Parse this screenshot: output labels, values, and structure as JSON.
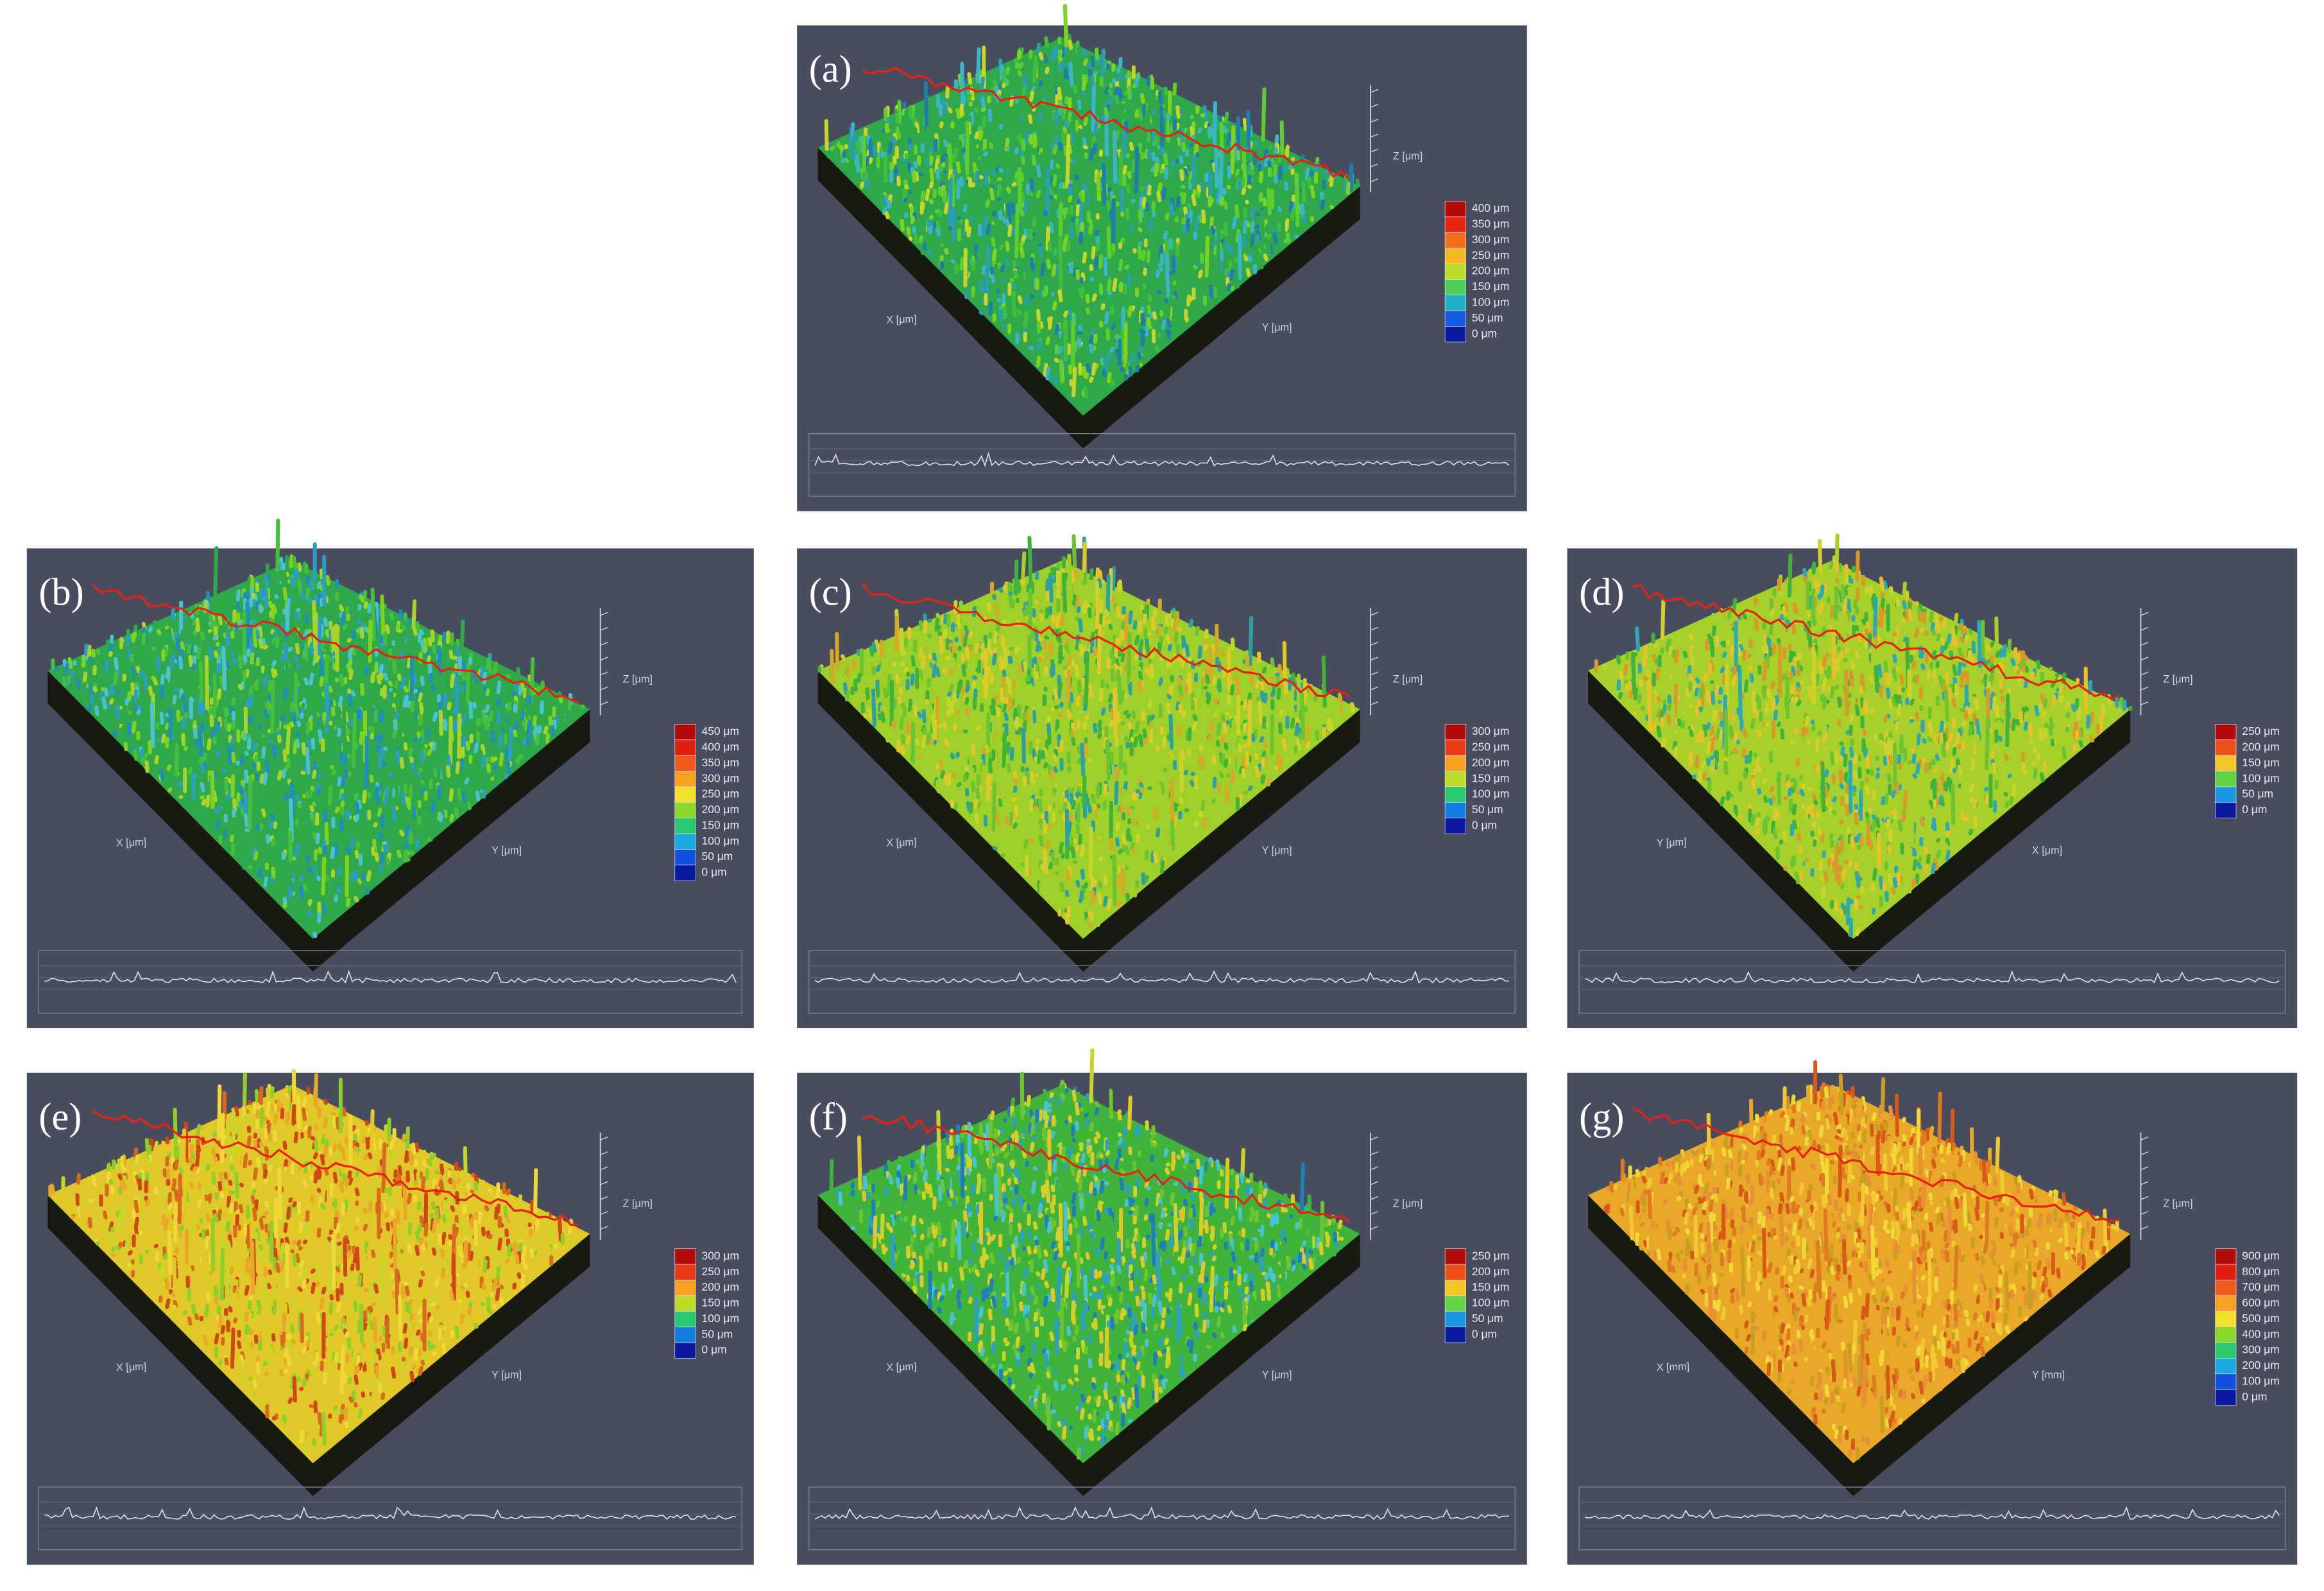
{
  "panels": [
    {
      "label": "(a)",
      "axes": [
        "X [μm]",
        "Y [μm]",
        "Z [μm]"
      ],
      "legend": [
        "400 μm",
        "350 μm",
        "300 μm",
        "250 μm",
        "200 μm",
        "150 μm",
        "100 μm",
        "50 μm",
        "0 μm"
      ]
    },
    {
      "label": "(b)",
      "axes": [
        "X [μm]",
        "Y [μm]",
        "Z [μm]"
      ],
      "legend": [
        "450 μm",
        "400 μm",
        "350 μm",
        "300 μm",
        "250 μm",
        "200 μm",
        "150 μm",
        "100 μm",
        "50 μm",
        "0 μm"
      ]
    },
    {
      "label": "(c)",
      "axes": [
        "X [μm]",
        "Y [μm]",
        "Z [μm]"
      ],
      "legend": [
        "300 μm",
        "250 μm",
        "200 μm",
        "150 μm",
        "100 μm",
        "50 μm",
        "0 μm"
      ]
    },
    {
      "label": "(d)",
      "axes": [
        "Y [μm]",
        "X [μm]",
        "Z [μm]"
      ],
      "legend": [
        "250 μm",
        "200 μm",
        "150 μm",
        "100 μm",
        "50 μm",
        "0 μm"
      ]
    },
    {
      "label": "(e)",
      "axes": [
        "X [μm]",
        "Y [μm]",
        "Z [μm]"
      ],
      "legend": [
        "300 μm",
        "250 μm",
        "200 μm",
        "150 μm",
        "100 μm",
        "50 μm",
        "0 μm"
      ]
    },
    {
      "label": "(f)",
      "axes": [
        "X [μm]",
        "Y [μm]",
        "Z [μm]"
      ],
      "legend": [
        "250 μm",
        "200 μm",
        "150 μm",
        "100 μm",
        "50 μm",
        "0 μm"
      ]
    },
    {
      "label": "(g)",
      "axes": [
        "X [mm]",
        "Y [mm]",
        "Z [μm]"
      ],
      "legend": [
        "900 μm",
        "800 μm",
        "700 μm",
        "600 μm",
        "500 μm",
        "400 μm",
        "300 μm",
        "200 μm",
        "100 μm",
        "0 μm"
      ]
    }
  ]
}
